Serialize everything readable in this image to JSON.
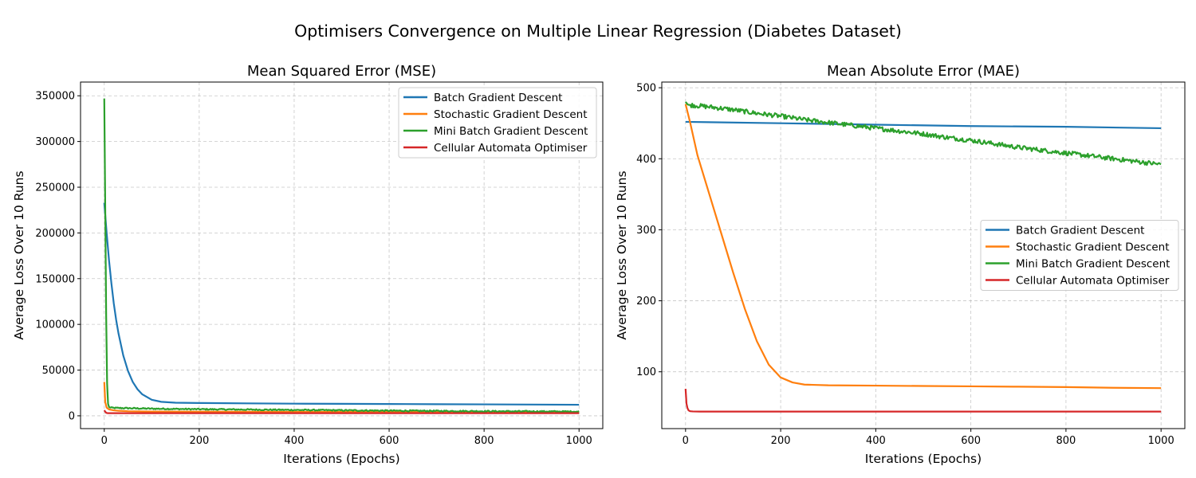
{
  "figure": {
    "title": "Optimisers Convergence on Multiple Linear Regression (Diabetes Dataset)"
  },
  "colors": {
    "Batch Gradient Descent": "#1f77b4",
    "Stochastic Gradient Descent": "#ff7f0e",
    "Mini Batch Gradient Descent": "#2ca02c",
    "Cellular Automata Optimiser": "#d62728"
  },
  "chart_data": [
    {
      "type": "line",
      "title": "Mean Squared Error (MSE)",
      "xlabel": "Iterations (Epochs)",
      "ylabel": "Average Loss Over 10 Runs",
      "xlim": [
        -50,
        1050
      ],
      "ylim": [
        -14000,
        365000
      ],
      "xticks": [
        0,
        200,
        400,
        600,
        800,
        1000
      ],
      "yticks": [
        0,
        50000,
        100000,
        150000,
        200000,
        250000,
        300000,
        350000
      ],
      "grid": true,
      "legend_position": "upper right",
      "series": [
        {
          "name": "Batch Gradient Descent",
          "x": [
            0,
            5,
            10,
            15,
            20,
            25,
            30,
            40,
            50,
            60,
            70,
            80,
            100,
            120,
            150,
            200,
            300,
            400,
            500,
            600,
            700,
            800,
            900,
            1000
          ],
          "values": [
            233000,
            200000,
            170000,
            145000,
            123000,
            105000,
            90000,
            66000,
            49000,
            37000,
            29000,
            23500,
            17500,
            15300,
            14300,
            14000,
            13600,
            13300,
            13100,
            12900,
            12700,
            12500,
            12300,
            12100
          ]
        },
        {
          "name": "Stochastic Gradient Descent",
          "x": [
            0,
            2,
            5,
            10,
            20,
            30,
            50,
            100,
            200,
            400,
            600,
            800,
            1000
          ],
          "values": [
            37000,
            15000,
            9000,
            7000,
            6000,
            5500,
            5000,
            4700,
            4500,
            4300,
            4200,
            4100,
            4000
          ]
        },
        {
          "name": "Mini Batch Gradient Descent",
          "x": [
            0,
            2,
            4,
            6,
            8,
            10,
            15,
            20,
            30,
            50,
            100,
            200,
            300,
            400,
            500,
            600,
            700,
            800,
            900,
            1000
          ],
          "values": [
            347000,
            230000,
            110000,
            35000,
            13000,
            9500,
            8800,
            8600,
            8500,
            8300,
            7800,
            7200,
            6800,
            6400,
            6000,
            5600,
            5300,
            5000,
            4800,
            4600
          ]
        },
        {
          "name": "Cellular Automata Optimiser",
          "x": [
            0,
            2,
            4,
            6,
            8,
            10,
            20,
            100,
            500,
            1000
          ],
          "values": [
            6000,
            4500,
            3300,
            3000,
            2900,
            2900,
            2900,
            2900,
            2900,
            2900
          ]
        }
      ]
    },
    {
      "type": "line",
      "title": "Mean Absolute Error (MAE)",
      "xlabel": "Iterations (Epochs)",
      "ylabel": "Average Loss Over 10 Runs",
      "xlim": [
        -50,
        1050
      ],
      "ylim": [
        20,
        508
      ],
      "xticks": [
        0,
        200,
        400,
        600,
        800,
        1000
      ],
      "yticks": [
        100,
        200,
        300,
        400,
        500
      ],
      "grid": true,
      "legend_position": "center right",
      "series": [
        {
          "name": "Batch Gradient Descent",
          "x": [
            0,
            200,
            400,
            600,
            800,
            1000
          ],
          "values": [
            452,
            450,
            448,
            446,
            445,
            443
          ]
        },
        {
          "name": "Stochastic Gradient Descent",
          "x": [
            0,
            10,
            25,
            50,
            75,
            100,
            125,
            150,
            175,
            200,
            225,
            250,
            275,
            300,
            400,
            500,
            600,
            700,
            800,
            900,
            1000
          ],
          "values": [
            477,
            450,
            405,
            350,
            295,
            240,
            188,
            143,
            110,
            92,
            85,
            82,
            81.5,
            81,
            80.5,
            80,
            79.5,
            79,
            78.5,
            77.5,
            77
          ]
        },
        {
          "name": "Mini Batch Gradient Descent",
          "x": [
            0,
            5,
            50,
            100,
            150,
            200,
            250,
            300,
            350,
            400,
            450,
            500,
            550,
            600,
            650,
            700,
            750,
            800,
            850,
            900,
            950,
            1000
          ],
          "values": [
            480,
            476,
            473,
            469,
            464,
            460,
            455,
            451,
            447,
            443,
            439,
            435,
            430,
            426,
            421,
            416,
            412,
            408,
            404,
            400,
            396,
            392
          ]
        },
        {
          "name": "Cellular Automata Optimiser",
          "x": [
            0,
            2,
            4,
            6,
            8,
            10,
            15,
            30,
            100,
            500,
            1000
          ],
          "values": [
            76,
            55,
            49,
            46,
            45,
            44.5,
            44.2,
            44,
            44,
            44,
            44
          ]
        }
      ]
    }
  ]
}
